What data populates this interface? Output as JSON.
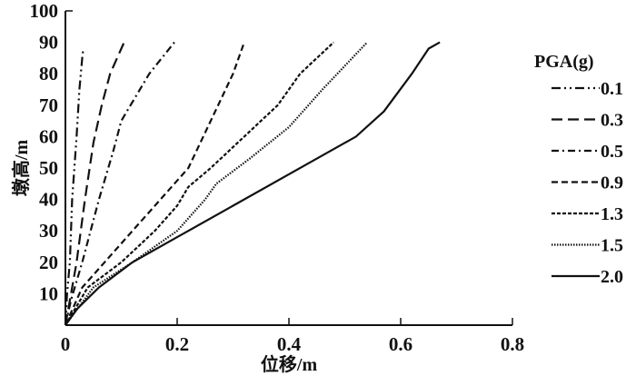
{
  "chart_data": {
    "type": "line",
    "title": "",
    "xlabel": "位移/m",
    "ylabel": "墩高/m",
    "xlim": [
      0,
      0.8
    ],
    "ylim": [
      0,
      100
    ],
    "xticks": [
      "0",
      "0.2",
      "0.4",
      "0.6",
      "0.8"
    ],
    "yticks": [
      "10",
      "20",
      "30",
      "40",
      "50",
      "60",
      "70",
      "80",
      "90",
      "100"
    ],
    "xtick_values": [
      0,
      0.2,
      0.4,
      0.6,
      0.8
    ],
    "ytick_values": [
      10,
      20,
      30,
      40,
      50,
      60,
      70,
      80,
      90,
      100
    ],
    "grid": false,
    "legend": {
      "title": "PGA(g)",
      "placement": "right"
    },
    "series": [
      {
        "name": "0.1",
        "dash": "10 4 2 4 2 4",
        "points": [
          [
            0,
            0
          ],
          [
            0.003,
            10
          ],
          [
            0.008,
            20
          ],
          [
            0.012,
            40
          ],
          [
            0.02,
            60
          ],
          [
            0.025,
            75
          ],
          [
            0.03,
            85
          ],
          [
            0.032,
            88
          ]
        ]
      },
      {
        "name": "0.3",
        "dash": "12 6",
        "points": [
          [
            0,
            0
          ],
          [
            0.01,
            10
          ],
          [
            0.02,
            20
          ],
          [
            0.035,
            40
          ],
          [
            0.05,
            58
          ],
          [
            0.065,
            70
          ],
          [
            0.08,
            80
          ],
          [
            0.105,
            90
          ]
        ]
      },
      {
        "name": "0.5",
        "dash": "8 4 2 4",
        "points": [
          [
            0,
            0
          ],
          [
            0.01,
            8
          ],
          [
            0.03,
            20
          ],
          [
            0.06,
            40
          ],
          [
            0.085,
            55
          ],
          [
            0.1,
            65
          ],
          [
            0.11,
            68
          ],
          [
            0.15,
            80
          ],
          [
            0.195,
            90
          ]
        ]
      },
      {
        "name": "0.9",
        "dash": "7 4",
        "points": [
          [
            0,
            0
          ],
          [
            0.03,
            12
          ],
          [
            0.07,
            20
          ],
          [
            0.12,
            30
          ],
          [
            0.17,
            40
          ],
          [
            0.22,
            50
          ],
          [
            0.26,
            65
          ],
          [
            0.3,
            80
          ],
          [
            0.32,
            90
          ]
        ]
      },
      {
        "name": "1.3",
        "dash": "4 2",
        "points": [
          [
            0,
            0
          ],
          [
            0.04,
            12
          ],
          [
            0.1,
            20
          ],
          [
            0.16,
            30
          ],
          [
            0.2,
            38
          ],
          [
            0.22,
            44
          ],
          [
            0.26,
            50
          ],
          [
            0.32,
            60
          ],
          [
            0.38,
            70
          ],
          [
            0.42,
            80
          ],
          [
            0.48,
            90
          ]
        ]
      },
      {
        "name": "1.5",
        "dash": "1.5 1.5",
        "points": [
          [
            0,
            0
          ],
          [
            0.05,
            12
          ],
          [
            0.12,
            20
          ],
          [
            0.2,
            30
          ],
          [
            0.25,
            40
          ],
          [
            0.27,
            45
          ],
          [
            0.33,
            53
          ],
          [
            0.4,
            63
          ],
          [
            0.46,
            75
          ],
          [
            0.54,
            90
          ]
        ]
      },
      {
        "name": "2.0",
        "dash": "",
        "points": [
          [
            0,
            0
          ],
          [
            0.02,
            5
          ],
          [
            0.06,
            12
          ],
          [
            0.12,
            20
          ],
          [
            0.2,
            28
          ],
          [
            0.3,
            38
          ],
          [
            0.45,
            53
          ],
          [
            0.52,
            60
          ],
          [
            0.57,
            68
          ],
          [
            0.62,
            80
          ],
          [
            0.65,
            88
          ],
          [
            0.67,
            90
          ]
        ]
      }
    ]
  }
}
